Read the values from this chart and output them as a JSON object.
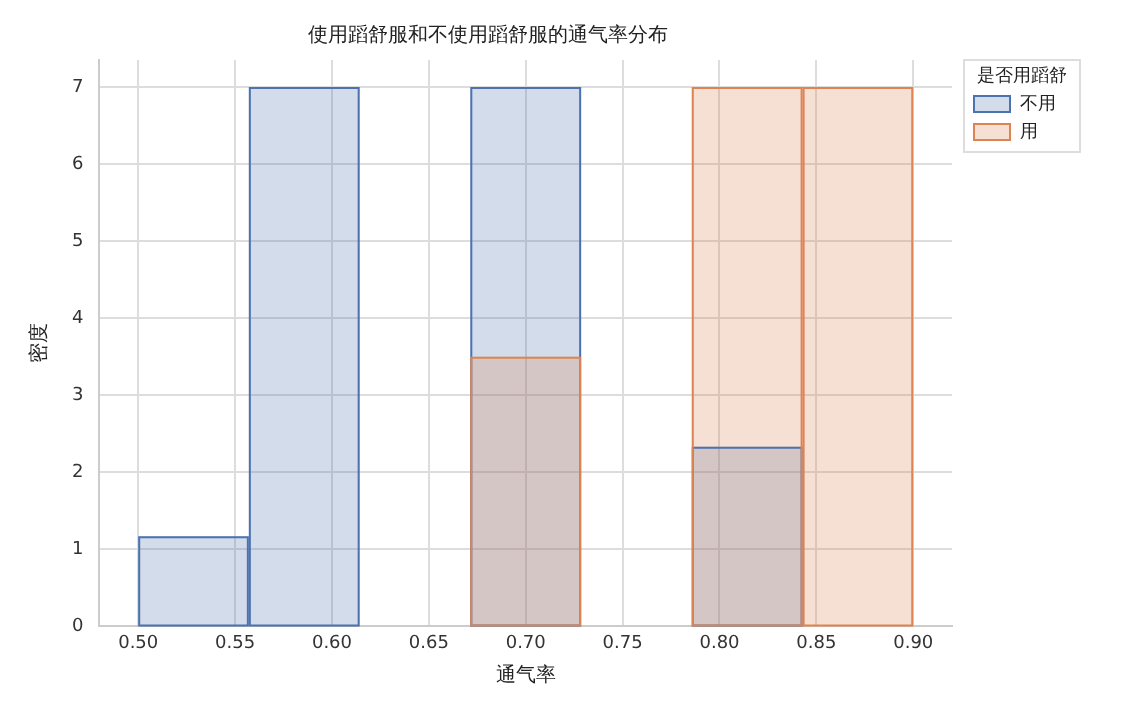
{
  "chart_data": {
    "type": "histogram",
    "title": "使用蹈舒服和不使用蹈舒服的通气率分布",
    "xlabel": "通气率",
    "ylabel": "密度",
    "legend_title": "是否用蹈舒",
    "bins": [
      0.5,
      0.5571,
      0.6143,
      0.6714,
      0.7286,
      0.7857,
      0.8429,
      0.9
    ],
    "series": [
      {
        "name": "不用",
        "color": "#4c72b0",
        "values": [
          1.17,
          7,
          0,
          7,
          0,
          2.33,
          0
        ]
      },
      {
        "name": "用",
        "color": "#dd8452",
        "values": [
          0,
          0,
          0,
          3.5,
          0,
          7,
          7
        ]
      }
    ],
    "xlim": [
      0.48,
      0.92
    ],
    "xticks": [
      {
        "value": 0.5,
        "label": "0.50"
      },
      {
        "value": 0.55,
        "label": "0.55"
      },
      {
        "value": 0.6,
        "label": "0.60"
      },
      {
        "value": 0.65,
        "label": "0.65"
      },
      {
        "value": 0.7,
        "label": "0.70"
      },
      {
        "value": 0.75,
        "label": "0.75"
      },
      {
        "value": 0.8,
        "label": "0.80"
      },
      {
        "value": 0.85,
        "label": "0.85"
      },
      {
        "value": 0.9,
        "label": "0.90"
      }
    ],
    "ylim": [
      0,
      7.35
    ],
    "yticks": [
      0,
      1,
      2,
      3,
      4,
      5,
      6,
      7
    ],
    "grid": true,
    "legend": "right"
  }
}
